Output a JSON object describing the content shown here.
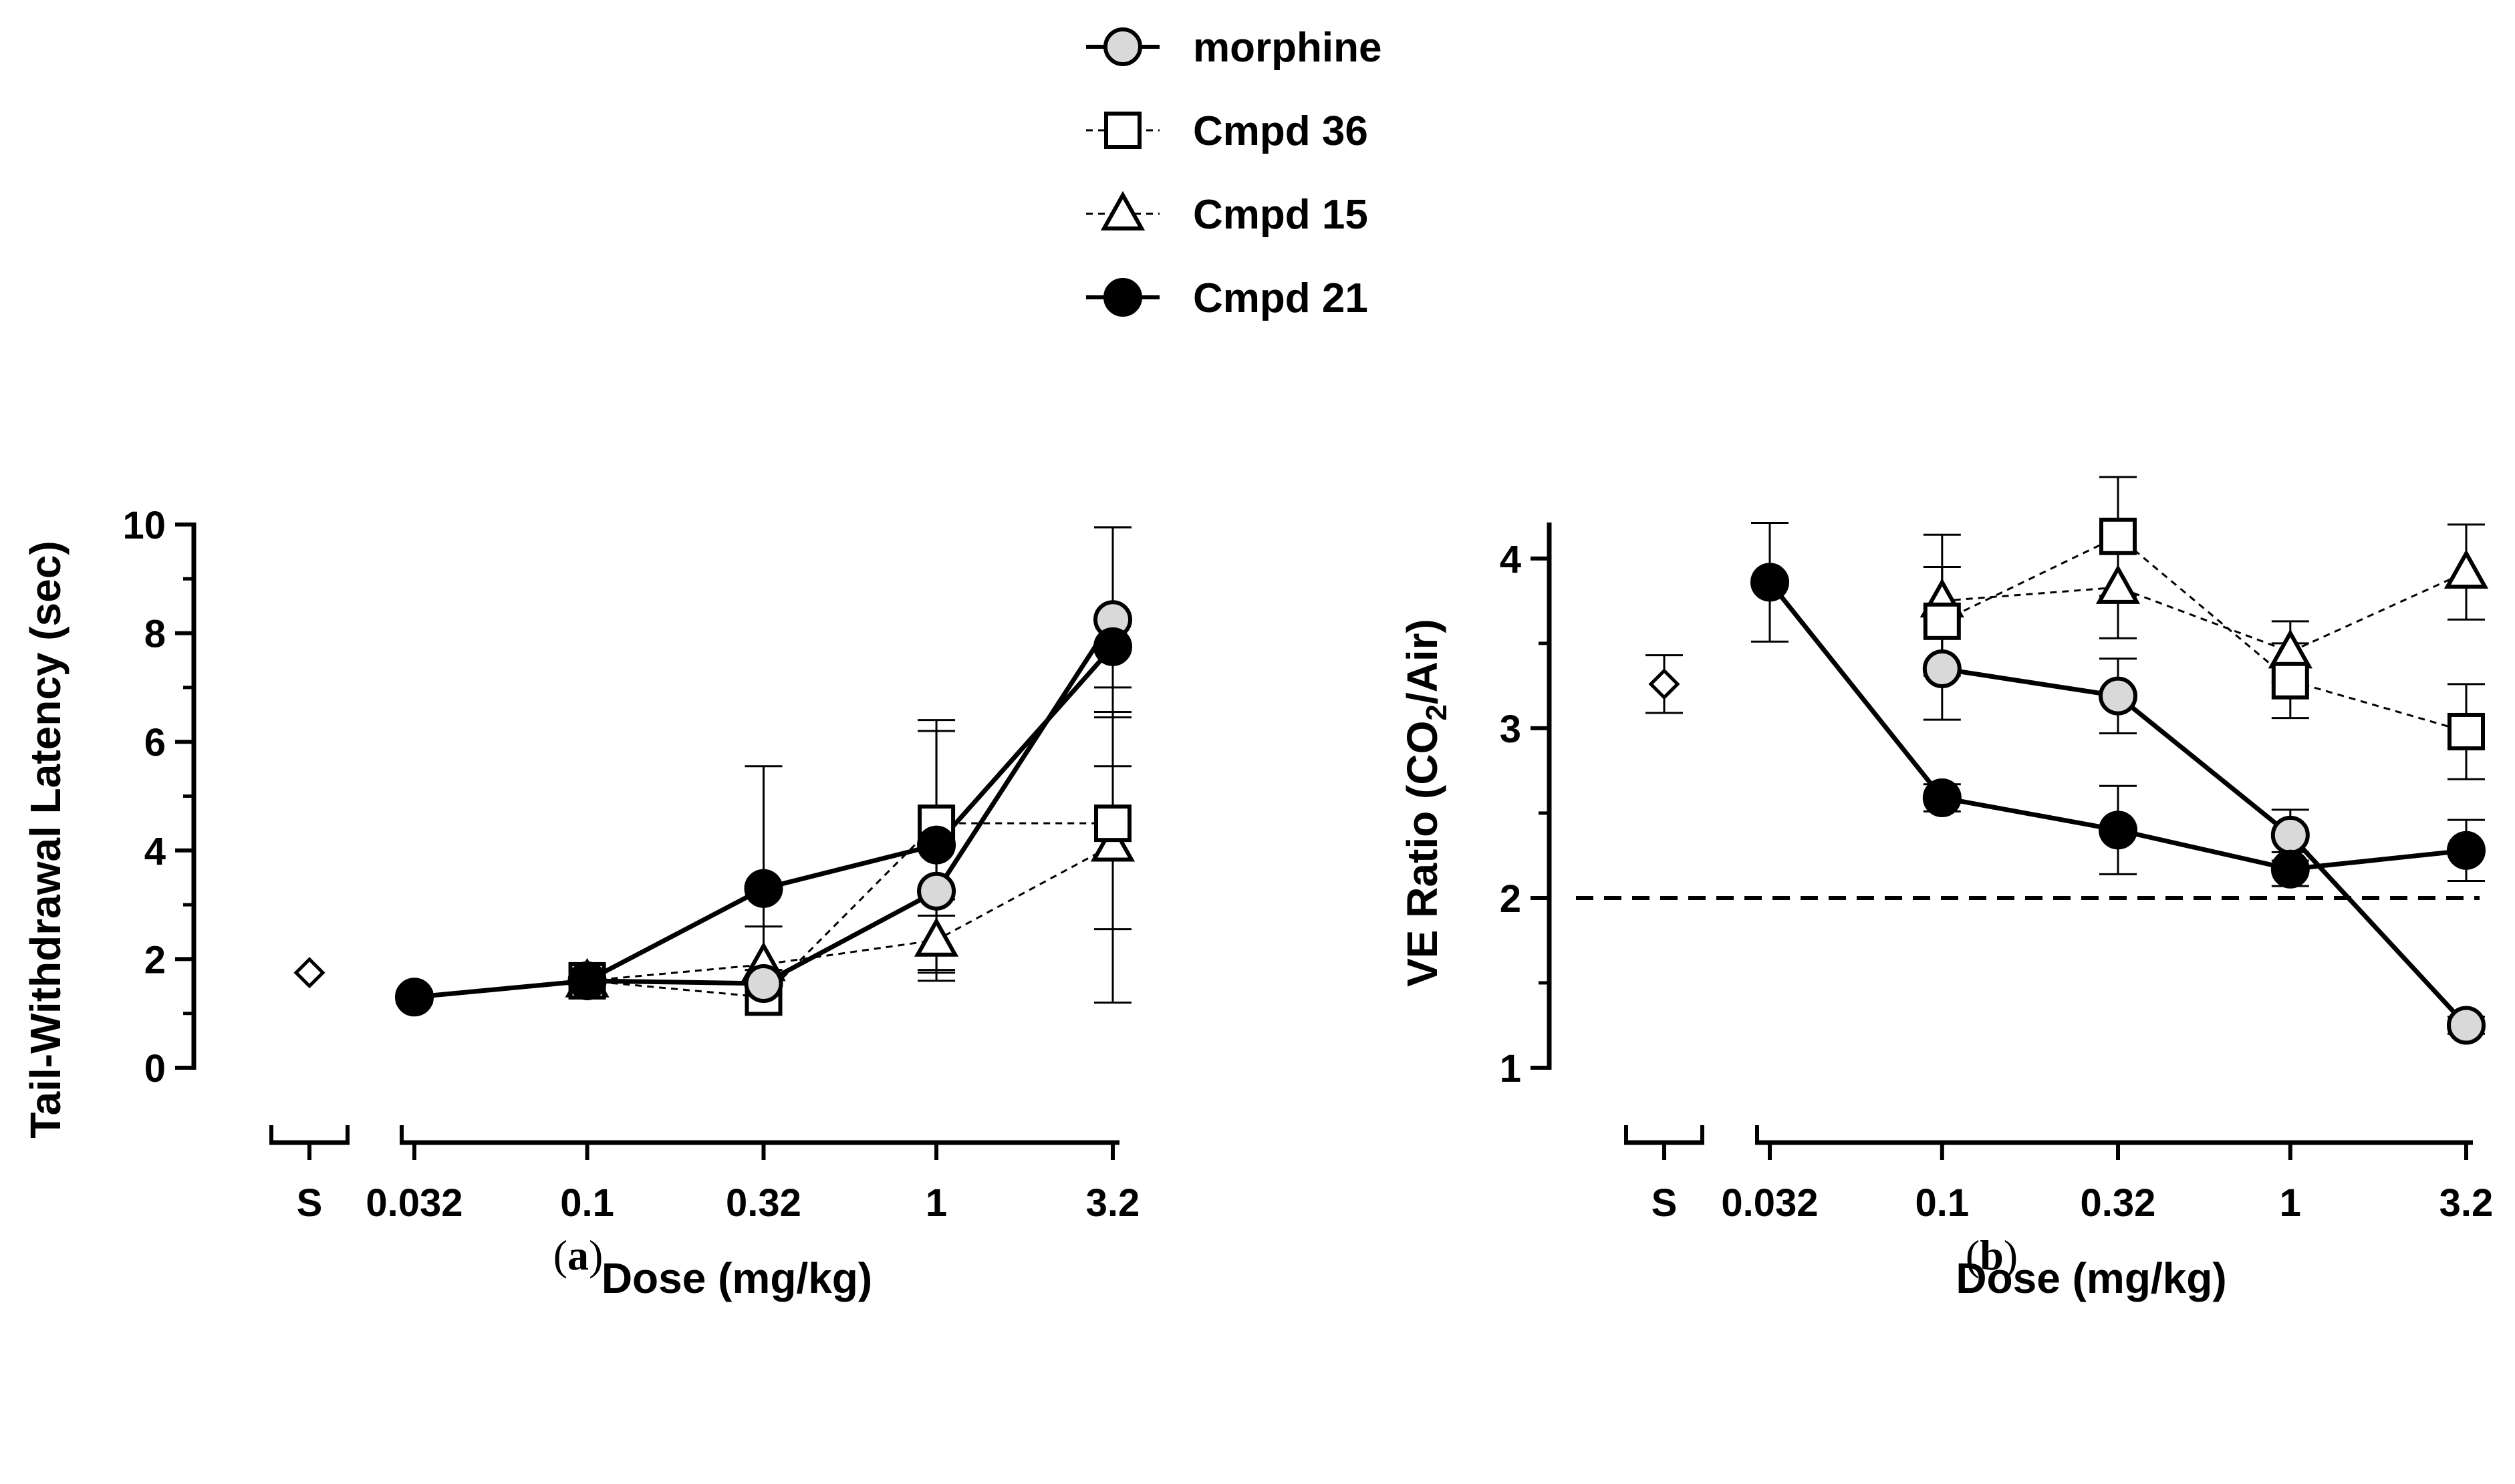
{
  "legend": [
    {
      "key": "morphine",
      "label": "morphine",
      "marker": "circle",
      "fill": "#d9d9d9",
      "line": "solid"
    },
    {
      "key": "cmpd36",
      "label": "Cmpd 36",
      "marker": "square",
      "fill": "#ffffff",
      "line": "dashed"
    },
    {
      "key": "cmpd15",
      "label": "Cmpd 15",
      "marker": "triangle",
      "fill": "#ffffff",
      "line": "dashed"
    },
    {
      "key": "cmpd21",
      "label": "Cmpd 21",
      "marker": "circle",
      "fill": "#000000",
      "line": "solid"
    }
  ],
  "chart_data": [
    {
      "type": "line",
      "panel": "(a)",
      "panel_letter": "a",
      "xlabel": "Dose (mg/kg)",
      "ylabel": "Tail-Withdrawal Latency (sec)",
      "ylim": [
        0,
        10
      ],
      "yticks": [
        "0",
        "2",
        "4",
        "6",
        "8",
        "10"
      ],
      "xticks": [
        "S",
        "0.032",
        "0.1",
        "0.32",
        "1",
        "3.2"
      ],
      "x_scale": "log",
      "saline": {
        "label": "S",
        "y": 1.75,
        "err": 0.0,
        "marker": "diamond"
      },
      "reference_line": null,
      "series": [
        {
          "key": "morphine",
          "x": [
            0.1,
            0.32,
            1,
            3.2
          ],
          "y": [
            1.6,
            1.55,
            3.25,
            8.25
          ],
          "err": [
            0.2,
            0.25,
            1.5,
            1.7
          ]
        },
        {
          "key": "cmpd36",
          "x": [
            0.1,
            0.32,
            1,
            3.2
          ],
          "y": [
            1.6,
            1.3,
            4.5,
            4.5
          ],
          "err": [
            0.25,
            0.3,
            1.7,
            1.95
          ]
        },
        {
          "key": "cmpd15",
          "x": [
            0.1,
            0.32,
            1,
            3.2
          ],
          "y": [
            1.6,
            1.9,
            2.35,
            4.1
          ],
          "err": [
            0.2,
            0.7,
            0.75,
            2.9
          ]
        },
        {
          "key": "cmpd21",
          "x": [
            0.032,
            0.1,
            0.32,
            1,
            3.2
          ],
          "y": [
            1.3,
            1.6,
            3.3,
            4.1,
            7.75
          ],
          "err": [
            0.1,
            0.2,
            2.25,
            2.3,
            2.2
          ]
        }
      ]
    },
    {
      "type": "line",
      "panel": "(b)",
      "panel_letter": "b",
      "xlabel": "Dose (mg/kg)",
      "ylabel_parts": [
        "VE Ratio (CO",
        "2",
        "/Air)"
      ],
      "ylim": [
        1,
        4.2
      ],
      "yticks": [
        "1",
        "2",
        "3",
        "4"
      ],
      "xticks": [
        "S",
        "0.032",
        "0.1",
        "0.32",
        "1",
        "3.2"
      ],
      "x_scale": "log",
      "saline": {
        "label": "S",
        "y": 3.26,
        "err": 0.17,
        "marker": "diamond"
      },
      "reference_line": {
        "y": 2.0,
        "style": "dashed"
      },
      "series": [
        {
          "key": "morphine",
          "x": [
            0.1,
            0.32,
            1,
            3.2
          ],
          "y": [
            3.35,
            3.19,
            2.37,
            1.25
          ],
          "err": [
            0.3,
            0.22,
            0.15,
            0.05
          ]
        },
        {
          "key": "cmpd36",
          "x": [
            0.1,
            0.32,
            1,
            3.2
          ],
          "y": [
            3.63,
            4.13,
            3.28,
            2.98
          ],
          "err": [
            0.32,
            0.35,
            0.22,
            0.28
          ]
        },
        {
          "key": "cmpd15",
          "x": [
            0.1,
            0.32,
            1,
            3.2
          ],
          "y": [
            3.75,
            3.83,
            3.45,
            3.92
          ],
          "err": [
            0.39,
            0.3,
            0.18,
            0.28
          ]
        },
        {
          "key": "cmpd21",
          "x": [
            0.032,
            0.1,
            0.32,
            1,
            3.2
          ],
          "y": [
            3.86,
            2.59,
            2.4,
            2.17,
            2.28
          ],
          "err": [
            0.35,
            0.08,
            0.26,
            0.1,
            0.18
          ]
        }
      ]
    }
  ]
}
